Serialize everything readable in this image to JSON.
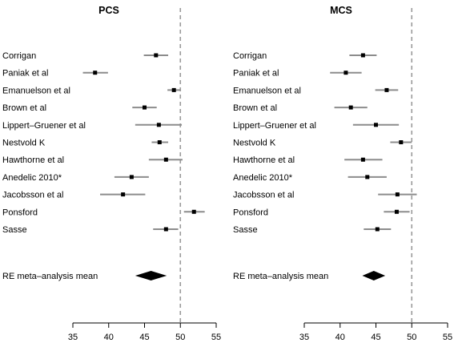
{
  "chart_data": [
    {
      "type": "forest",
      "title": "PCS",
      "reference_line": 50,
      "xlim": [
        35,
        55
      ],
      "xticks": [
        35,
        40,
        45,
        50,
        55
      ],
      "studies": [
        {
          "label": "Corrigan",
          "estimate": 46.6,
          "ci": [
            44.9,
            48.3
          ]
        },
        {
          "label": "Paniak et al",
          "estimate": 38.1,
          "ci": [
            36.4,
            39.9
          ]
        },
        {
          "label": "Emanuelson et al",
          "estimate": 49.1,
          "ci": [
            48.2,
            50.0
          ]
        },
        {
          "label": "Brown et al",
          "estimate": 45.0,
          "ci": [
            43.3,
            46.7
          ]
        },
        {
          "label": "Lippert–Gruener et al",
          "estimate": 47.0,
          "ci": [
            43.7,
            50.2
          ]
        },
        {
          "label": "Nestvold K",
          "estimate": 47.1,
          "ci": [
            46.0,
            48.3
          ]
        },
        {
          "label": "Hawthorne et al",
          "estimate": 48.0,
          "ci": [
            45.6,
            50.3
          ]
        },
        {
          "label": "Anedelic 2010*",
          "estimate": 43.2,
          "ci": [
            40.8,
            45.6
          ]
        },
        {
          "label": "Jacobsson et al",
          "estimate": 42.0,
          "ci": [
            38.8,
            45.1
          ]
        },
        {
          "label": "Ponsford",
          "estimate": 51.9,
          "ci": [
            50.5,
            53.4
          ]
        },
        {
          "label": "Sasse",
          "estimate": 48.0,
          "ci": [
            46.2,
            49.7
          ]
        }
      ],
      "summary": {
        "label": "RE meta–analysis mean",
        "estimate": 45.9,
        "ci": [
          43.7,
          48.1
        ]
      }
    },
    {
      "type": "forest",
      "title": "MCS",
      "reference_line": 50,
      "xlim": [
        35,
        55
      ],
      "xticks": [
        35,
        40,
        45,
        50,
        55
      ],
      "studies": [
        {
          "label": "Corrigan",
          "estimate": 43.2,
          "ci": [
            41.3,
            45.1
          ]
        },
        {
          "label": "Paniak et al",
          "estimate": 40.8,
          "ci": [
            38.6,
            43.0
          ]
        },
        {
          "label": "Emanuelson et al",
          "estimate": 46.5,
          "ci": [
            44.9,
            48.1
          ]
        },
        {
          "label": "Brown et al",
          "estimate": 41.5,
          "ci": [
            39.2,
            43.8
          ]
        },
        {
          "label": "Lippert–Gruener et al",
          "estimate": 45.0,
          "ci": [
            41.8,
            48.2
          ]
        },
        {
          "label": "Nestvold K",
          "estimate": 48.5,
          "ci": [
            47.0,
            50.0
          ]
        },
        {
          "label": "Hawthorne et al",
          "estimate": 43.2,
          "ci": [
            40.6,
            45.9
          ]
        },
        {
          "label": "Anedelic 2010*",
          "estimate": 43.8,
          "ci": [
            41.1,
            46.5
          ]
        },
        {
          "label": "Jacobsson et al",
          "estimate": 48.0,
          "ci": [
            45.3,
            50.7
          ]
        },
        {
          "label": "Ponsford",
          "estimate": 47.9,
          "ci": [
            46.1,
            49.7
          ]
        },
        {
          "label": "Sasse",
          "estimate": 45.2,
          "ci": [
            43.3,
            47.1
          ]
        }
      ],
      "summary": {
        "label": "RE meta–analysis mean",
        "estimate": 44.7,
        "ci": [
          43.1,
          46.3
        ]
      }
    }
  ]
}
